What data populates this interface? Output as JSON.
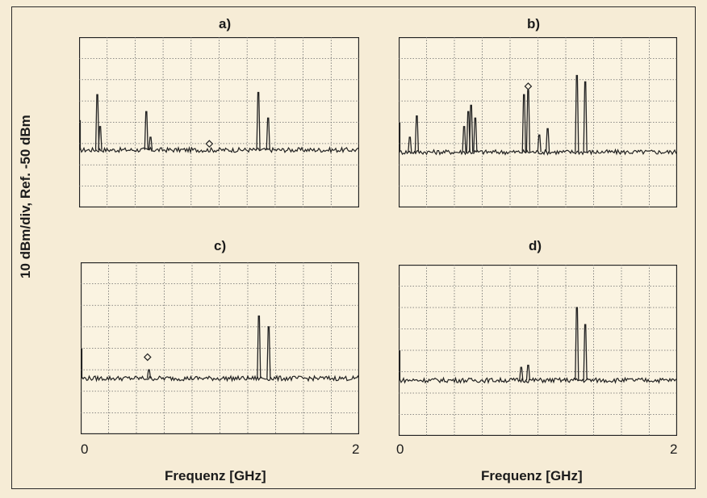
{
  "figure": {
    "ylabel": "10 dBm/div, Ref. -50 dBm",
    "xlabel": "Frequenz [GHz]",
    "colors": {
      "background": "#f6ecd6",
      "grid": "#6a6a6a",
      "trace": "#222222"
    }
  },
  "chart_data": [
    {
      "type": "line",
      "panel": "a)",
      "xlim": [
        0,
        2
      ],
      "ylim": [
        -130,
        -50
      ],
      "x_ticks": [
        "0",
        "2"
      ],
      "xlabel": "",
      "grid": true,
      "noise_floor": -103,
      "peaks": [
        {
          "x": 0.13,
          "y": -77
        },
        {
          "x": 0.15,
          "y": -92
        },
        {
          "x": 0.48,
          "y": -85
        },
        {
          "x": 0.51,
          "y": -97
        },
        {
          "x": 1.28,
          "y": -76
        },
        {
          "x": 1.35,
          "y": -88
        }
      ],
      "markers": [
        {
          "x": 0.93,
          "y": -102
        }
      ]
    },
    {
      "type": "line",
      "panel": "b)",
      "xlim": [
        0,
        2
      ],
      "ylim": [
        -130,
        -50
      ],
      "x_ticks": [],
      "xlabel": "",
      "grid": true,
      "noise_floor": -104,
      "peaks": [
        {
          "x": 0.08,
          "y": -97
        },
        {
          "x": 0.13,
          "y": -87
        },
        {
          "x": 0.47,
          "y": -92
        },
        {
          "x": 0.5,
          "y": -85
        },
        {
          "x": 0.52,
          "y": -82
        },
        {
          "x": 0.55,
          "y": -88
        },
        {
          "x": 0.9,
          "y": -77
        },
        {
          "x": 0.93,
          "y": -75
        },
        {
          "x": 1.01,
          "y": -96
        },
        {
          "x": 1.07,
          "y": -93
        },
        {
          "x": 1.28,
          "y": -68
        },
        {
          "x": 1.34,
          "y": -71
        }
      ],
      "markers": [
        {
          "x": 0.93,
          "y": -75
        }
      ]
    },
    {
      "type": "line",
      "panel": "c)",
      "xlim": [
        0,
        2
      ],
      "ylim": [
        -130,
        -50
      ],
      "x_ticks": [
        "0",
        "2"
      ],
      "xlabel": "Frequenz [GHz]",
      "grid": true,
      "noise_floor": -104,
      "peaks": [
        {
          "x": 0.49,
          "y": -100
        },
        {
          "x": 1.28,
          "y": -75
        },
        {
          "x": 1.35,
          "y": -80
        }
      ],
      "markers": [
        {
          "x": 0.48,
          "y": -96
        }
      ]
    },
    {
      "type": "line",
      "panel": "d)",
      "xlim": [
        0,
        2
      ],
      "ylim": [
        -130,
        -50
      ],
      "x_ticks": [
        "0",
        "2"
      ],
      "xlabel": "Frequenz [GHz]",
      "grid": true,
      "noise_floor": -104,
      "peaks": [
        {
          "x": 0.88,
          "y": -98
        },
        {
          "x": 0.93,
          "y": -97
        },
        {
          "x": 1.28,
          "y": -70
        },
        {
          "x": 1.34,
          "y": -78
        }
      ],
      "markers": []
    }
  ]
}
